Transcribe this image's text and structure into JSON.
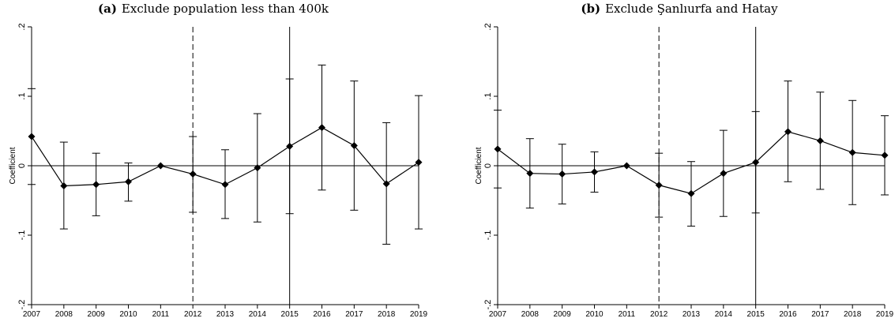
{
  "chart_data": [
    {
      "type": "scatter",
      "panel_label": "(a)",
      "title": "Exclude population less than 400k",
      "xlabel": "",
      "ylabel": "Coefficient",
      "x": [
        2007,
        2008,
        2009,
        2010,
        2011,
        2012,
        2013,
        2014,
        2015,
        2016,
        2017,
        2018,
        2019
      ],
      "series": [
        {
          "values": [
            0.042,
            -0.029,
            -0.027,
            -0.023,
            0.0,
            -0.012,
            -0.027,
            -0.003,
            0.028,
            0.055,
            0.029,
            -0.026,
            0.005
          ],
          "ci_low": [
            -0.027,
            -0.091,
            -0.072,
            -0.051,
            0.0,
            -0.067,
            -0.076,
            -0.081,
            -0.069,
            -0.035,
            -0.064,
            -0.113,
            -0.091
          ],
          "ci_high": [
            0.111,
            0.034,
            0.018,
            0.004,
            0.0,
            0.042,
            0.023,
            0.075,
            0.125,
            0.145,
            0.122,
            0.062,
            0.101
          ]
        }
      ],
      "xlim": [
        2007,
        2019
      ],
      "ylim": [
        -0.2,
        0.2
      ],
      "yticks": [
        -0.2,
        -0.1,
        0,
        0.1,
        0.2
      ],
      "ytick_labels": [
        "-.2",
        "-.1",
        "0",
        ".1",
        ".2"
      ],
      "xticks": [
        "2007",
        "2008",
        "2009",
        "2010",
        "2011",
        "2012",
        "2013",
        "2014",
        "2015",
        "2016",
        "2017",
        "2018",
        "2019"
      ],
      "vline_dashed": 2012,
      "vline_solid": 2015,
      "hline": 0,
      "grid": false
    },
    {
      "type": "scatter",
      "panel_label": "(b)",
      "title": "Exclude Şanlıurfa and Hatay",
      "xlabel": "",
      "ylabel": "Coefficient",
      "x": [
        2007,
        2008,
        2009,
        2010,
        2011,
        2012,
        2013,
        2014,
        2015,
        2016,
        2017,
        2018,
        2019
      ],
      "series": [
        {
          "values": [
            0.024,
            -0.011,
            -0.012,
            -0.009,
            0.0,
            -0.028,
            -0.04,
            -0.011,
            0.005,
            0.049,
            0.036,
            0.019,
            0.015
          ],
          "ci_low": [
            -0.032,
            -0.061,
            -0.055,
            -0.038,
            0.0,
            -0.074,
            -0.087,
            -0.073,
            -0.068,
            -0.023,
            -0.034,
            -0.056,
            -0.042
          ],
          "ci_high": [
            0.08,
            0.039,
            0.031,
            0.02,
            0.0,
            0.018,
            0.006,
            0.051,
            0.078,
            0.122,
            0.106,
            0.094,
            0.072
          ]
        }
      ],
      "xlim": [
        2007,
        2019
      ],
      "ylim": [
        -0.2,
        0.2
      ],
      "yticks": [
        -0.2,
        -0.1,
        0,
        0.1,
        0.2
      ],
      "ytick_labels": [
        "-.2",
        "-.1",
        "0",
        ".1",
        ".2"
      ],
      "xticks": [
        "2007",
        "2008",
        "2009",
        "2010",
        "2011",
        "2012",
        "2013",
        "2014",
        "2015",
        "2016",
        "2017",
        "2018",
        "2019"
      ],
      "vline_dashed": 2012,
      "vline_solid": 2015,
      "hline": 0,
      "grid": false
    }
  ]
}
